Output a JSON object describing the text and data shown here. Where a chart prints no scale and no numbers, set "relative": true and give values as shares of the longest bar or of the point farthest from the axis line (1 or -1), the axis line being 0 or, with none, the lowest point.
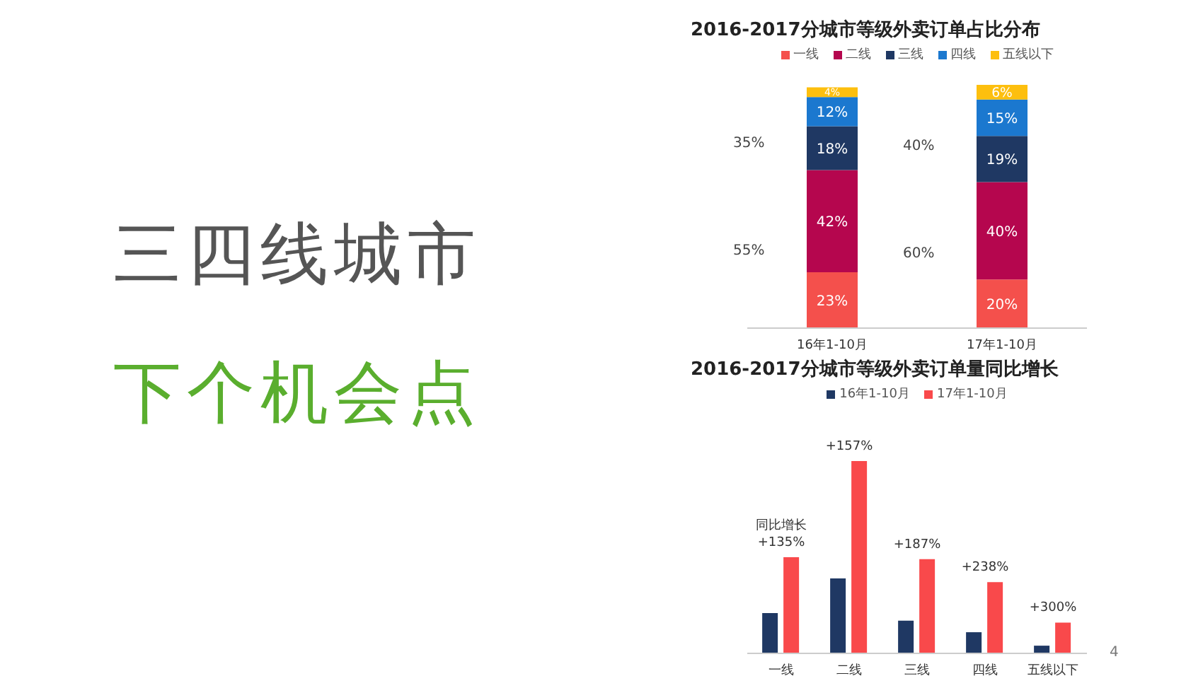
{
  "chart_data": [
    {
      "type": "other",
      "annotations": [
        "三四线城市",
        "下个机会点",
        "4"
      ]
    },
    {
      "type": "bar",
      "title": "2016-2017分城市等级外卖订单占比分布",
      "categories": [
        "16年1-10月",
        "17年1-10月"
      ],
      "stacked": true,
      "legend": "top",
      "tick_labels": "x",
      "series": [
        {
          "name": "一线",
          "color": "#f4504c",
          "values": [
            23,
            20
          ],
          "value_labels": [
            "23%",
            "20%"
          ]
        },
        {
          "name": "二线",
          "color": "#b5064e",
          "values": [
            42,
            40
          ],
          "value_labels": [
            "42%",
            "40%"
          ]
        },
        {
          "name": "三线",
          "color": "#1f3863",
          "values": [
            18,
            19
          ],
          "value_labels": [
            "18%",
            "19%"
          ]
        },
        {
          "name": "四线",
          "color": "#1b78cf",
          "values": [
            12,
            15
          ],
          "value_labels": [
            "12%",
            "15%"
          ]
        },
        {
          "name": "五线以下",
          "color": "#fdbf0e",
          "values": [
            4,
            6
          ],
          "value_labels": [
            "4%",
            "6%"
          ]
        }
      ],
      "annotations": [
        "35%",
        "55%",
        "40%",
        "60%"
      ]
    },
    {
      "type": "bar",
      "title": "2016-2017分城市等级外卖订单量同比增长",
      "categories": [
        "一线",
        "二线",
        "三线",
        "四线",
        "五线以下"
      ],
      "relative": true,
      "legend": "top",
      "series": [
        {
          "name": "16年1-10月",
          "color": "#1f3863",
          "values": [
            0.21,
            0.39,
            0.17,
            0.11,
            0.04
          ]
        },
        {
          "name": "17年1-10月",
          "color": "#f9494b",
          "values": [
            0.5,
            1,
            0.49,
            0.37,
            0.16
          ]
        }
      ],
      "annotations": [
        {
          "text": "同比增长\n+135%",
          "x": "一线",
          "y": 0.5
        },
        {
          "text": "+157%",
          "x": "二线",
          "y": 1
        },
        {
          "text": "+187%",
          "x": "三线",
          "y": 0.49
        },
        {
          "text": "+238%",
          "x": "四线",
          "y": 0.37
        },
        {
          "text": "+300%",
          "x": "五线以下",
          "y": 0.16
        }
      ]
    }
  ]
}
